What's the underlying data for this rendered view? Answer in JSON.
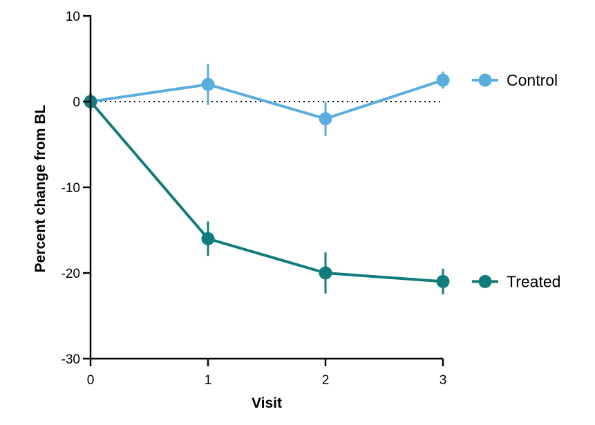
{
  "chart_data": {
    "type": "line",
    "title": "",
    "xlabel": "Visit",
    "ylabel": "Percent change from BL",
    "x": [
      0,
      1,
      2,
      3
    ],
    "xticks": [
      "0",
      "1",
      "2",
      "3"
    ],
    "xlim": [
      0,
      3
    ],
    "ylim": [
      -30,
      10
    ],
    "yticks": [
      "10",
      "0",
      "-10",
      "-20",
      "-30"
    ],
    "ytick_values": [
      10,
      0,
      -10,
      -20,
      -30
    ],
    "grid": false,
    "reference_line_y": 0,
    "legend_position": "right",
    "series": [
      {
        "name": "Control",
        "color": "#5aaede",
        "values": [
          0,
          2,
          -2,
          2.5
        ],
        "error": [
          1,
          2.4,
          2,
          1
        ]
      },
      {
        "name": "Treated",
        "color": "#127c7c",
        "values": [
          0,
          -16,
          -20,
          -21
        ],
        "error": [
          1,
          2,
          2.4,
          1.5
        ]
      }
    ]
  }
}
